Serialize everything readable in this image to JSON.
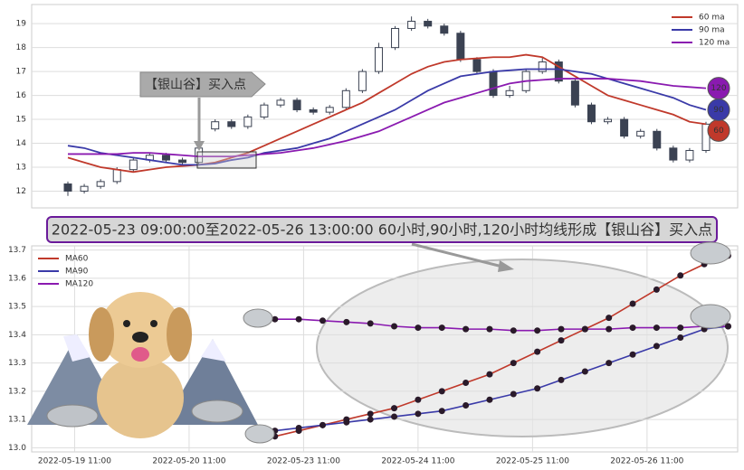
{
  "chart_data": [
    {
      "type": "candlestick",
      "annotation": "【银山谷】买入点",
      "candle_color": "#3b4252",
      "open": [
        12.3,
        12.0,
        12.2,
        12.4,
        12.9,
        13.3,
        13.5,
        13.3,
        13.2,
        14.6,
        14.9,
        14.7,
        15.1,
        15.6,
        15.8,
        15.4,
        15.3,
        15.5,
        16.2,
        17.0,
        18.0,
        18.8,
        19.1,
        18.9,
        18.6,
        17.5,
        17.0,
        16.0,
        16.2,
        17.0,
        17.4,
        16.6,
        15.6,
        14.9,
        15.0,
        14.3,
        14.5,
        13.8,
        13.3,
        13.7
      ],
      "high": [
        12.4,
        12.3,
        12.5,
        13.0,
        13.4,
        13.6,
        13.6,
        13.4,
        13.9,
        15.0,
        15.0,
        15.2,
        15.7,
        15.9,
        15.9,
        15.5,
        15.6,
        16.3,
        17.1,
        18.2,
        18.9,
        19.3,
        19.2,
        19.0,
        18.7,
        17.6,
        17.1,
        16.4,
        17.1,
        17.6,
        17.5,
        16.7,
        15.7,
        15.1,
        15.1,
        14.6,
        14.6,
        13.9,
        13.8,
        14.9
      ],
      "low": [
        11.8,
        11.9,
        12.1,
        12.3,
        12.8,
        13.2,
        13.2,
        13.1,
        13.1,
        14.5,
        14.6,
        14.6,
        15.0,
        15.5,
        15.3,
        15.2,
        15.2,
        15.4,
        16.1,
        16.9,
        17.9,
        18.7,
        18.8,
        18.5,
        17.4,
        16.9,
        15.9,
        15.9,
        16.1,
        16.9,
        16.5,
        15.5,
        14.8,
        14.8,
        14.2,
        14.2,
        13.7,
        13.2,
        13.2,
        13.6
      ],
      "close": [
        12.0,
        12.2,
        12.4,
        12.9,
        13.3,
        13.5,
        13.3,
        13.2,
        13.8,
        14.9,
        14.7,
        15.1,
        15.6,
        15.8,
        15.4,
        15.3,
        15.5,
        16.2,
        17.0,
        18.0,
        18.8,
        19.1,
        18.9,
        18.6,
        17.5,
        17.0,
        16.0,
        16.2,
        17.0,
        17.4,
        16.6,
        15.6,
        14.9,
        15.0,
        14.3,
        14.5,
        13.8,
        13.3,
        13.7,
        14.8
      ],
      "series": [
        {
          "name": "60 ma",
          "label": "60",
          "color": "#c0392b",
          "values": [
            13.4,
            13.2,
            13.0,
            12.9,
            12.8,
            12.9,
            13.0,
            13.05,
            13.1,
            13.2,
            13.4,
            13.6,
            13.9,
            14.2,
            14.5,
            14.8,
            15.1,
            15.4,
            15.7,
            16.1,
            16.5,
            16.9,
            17.2,
            17.4,
            17.5,
            17.55,
            17.6,
            17.6,
            17.7,
            17.6,
            17.2,
            16.8,
            16.4,
            16.0,
            15.8,
            15.6,
            15.4,
            15.2,
            14.9,
            14.8
          ]
        },
        {
          "name": "90 ma",
          "label": "90",
          "color": "#3a3aa8",
          "values": [
            13.9,
            13.8,
            13.6,
            13.5,
            13.4,
            13.3,
            13.2,
            13.1,
            13.1,
            13.15,
            13.3,
            13.4,
            13.6,
            13.7,
            13.8,
            14.0,
            14.2,
            14.5,
            14.8,
            15.1,
            15.4,
            15.8,
            16.2,
            16.5,
            16.8,
            16.9,
            17.0,
            17.05,
            17.1,
            17.1,
            17.1,
            17.0,
            16.9,
            16.7,
            16.5,
            16.3,
            16.1,
            15.9,
            15.6,
            15.4
          ]
        },
        {
          "name": "120 ma",
          "label": "120",
          "color": "#8a1ab0",
          "values": [
            13.55,
            13.55,
            13.55,
            13.55,
            13.6,
            13.6,
            13.55,
            13.5,
            13.45,
            13.45,
            13.45,
            13.5,
            13.55,
            13.6,
            13.7,
            13.8,
            13.95,
            14.1,
            14.3,
            14.5,
            14.8,
            15.1,
            15.4,
            15.7,
            15.9,
            16.1,
            16.3,
            16.5,
            16.6,
            16.65,
            16.7,
            16.7,
            16.7,
            16.7,
            16.65,
            16.6,
            16.5,
            16.4,
            16.35,
            16.3
          ]
        }
      ],
      "ylim": [
        11.3,
        19.8
      ],
      "yticks": [
        12,
        13,
        14,
        15,
        16,
        17,
        18,
        19
      ],
      "grid": true,
      "legend": "upper right"
    },
    {
      "type": "line",
      "title": "2022-05-23 09:00:00至2022-05-26 13:00:00 60小时,90小时,120小时均线形成【银山谷】买入点",
      "x": [
        "2022-05-23 05:00",
        "2022-05-23 10:00",
        "2022-05-23 15:00",
        "2022-05-23 20:00",
        "2022-05-24 01:00",
        "2022-05-24 06:00",
        "2022-05-24 11:00",
        "2022-05-24 16:00",
        "2022-05-24 21:00",
        "2022-05-25 02:00",
        "2022-05-25 07:00",
        "2022-05-25 12:00",
        "2022-05-25 17:00",
        "2022-05-25 22:00",
        "2022-05-26 03:00",
        "2022-05-26 08:00",
        "2022-05-26 13:00",
        "2022-05-26 18:00",
        "2022-05-26 23:00",
        "2022-05-27 04:00"
      ],
      "series": [
        {
          "name": "MA60",
          "color": "#c0392b",
          "values": [
            13.04,
            13.06,
            13.08,
            13.1,
            13.12,
            13.14,
            13.17,
            13.2,
            13.23,
            13.26,
            13.3,
            13.34,
            13.38,
            13.42,
            13.46,
            13.51,
            13.56,
            13.61,
            13.65,
            13.68
          ]
        },
        {
          "name": "MA90",
          "color": "#3a3aa8",
          "values": [
            13.06,
            13.07,
            13.08,
            13.09,
            13.1,
            13.11,
            13.12,
            13.13,
            13.15,
            13.17,
            13.19,
            13.21,
            13.24,
            13.27,
            13.3,
            13.33,
            13.36,
            13.39,
            13.42,
            13.43
          ]
        },
        {
          "name": "MA120",
          "color": "#8a1ab0",
          "values": [
            13.455,
            13.455,
            13.45,
            13.445,
            13.44,
            13.43,
            13.425,
            13.425,
            13.42,
            13.42,
            13.415,
            13.415,
            13.42,
            13.42,
            13.42,
            13.425,
            13.425,
            13.425,
            13.43,
            13.43
          ]
        }
      ],
      "xlim": [
        "2022-05-19 02:00",
        "2022-05-27 06:00"
      ],
      "xticks": [
        "2022-05-19 11:00",
        "2022-05-20 11:00",
        "2022-05-23 11:00",
        "2022-05-24 11:00",
        "2022-05-25 11:00",
        "2022-05-26 11:00"
      ],
      "ylim": [
        12.985,
        13.715
      ],
      "yticks": [
        {
          "value": 13,
          "label": "13.0"
        },
        13.1,
        13.2,
        13.3,
        13.4,
        13.5,
        13.6,
        13.7
      ],
      "grid": true,
      "legend": "upper left"
    }
  ]
}
